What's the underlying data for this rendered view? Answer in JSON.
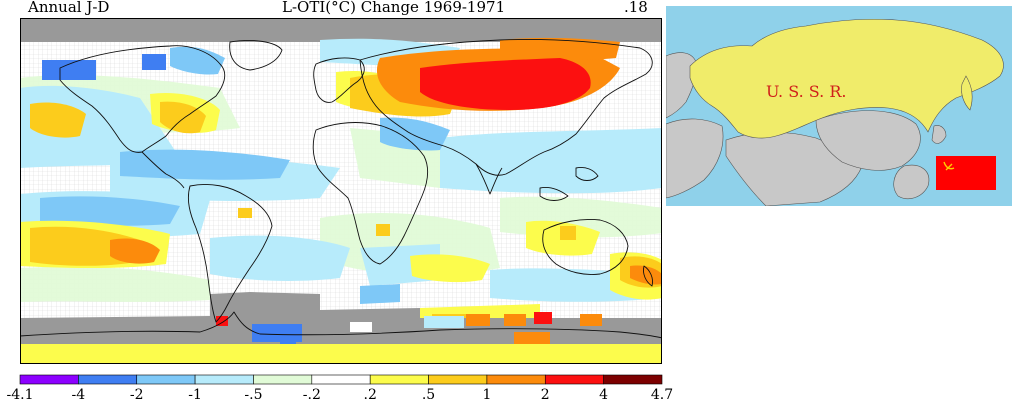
{
  "header": {
    "left": "Annual J-D",
    "center": "L-OTI(°C) Change 1969-1971",
    "right": ".18"
  },
  "inset": {
    "label": "U. S. S. R.",
    "label_color": "#d0201a",
    "land_color": "#f0ec6a",
    "other_land_color": "#c8c8c8",
    "sea_color": "#8fd1ea",
    "flag_color": "#ff0000"
  },
  "colors": {
    "no_data": "#999999",
    "neutral": "#ffffff",
    "grid": "#d9d9d9"
  },
  "scale": {
    "ticks": [
      "-4.1",
      "-4",
      "-2",
      "-1",
      "-.5",
      "-.2",
      ".2",
      ".5",
      "1",
      "2",
      "4",
      "4.7"
    ],
    "bins": [
      {
        "color": "#8c00ff"
      },
      {
        "color": "#3f7ef2"
      },
      {
        "color": "#7ec8f7"
      },
      {
        "color": "#b7ebfb"
      },
      {
        "color": "#e1fbd7"
      },
      {
        "color": "#ffffff"
      },
      {
        "color": "#fcfc4c"
      },
      {
        "color": "#fccc1c"
      },
      {
        "color": "#fc8b0c"
      },
      {
        "color": "#fc1010"
      },
      {
        "color": "#7c0000"
      }
    ]
  }
}
